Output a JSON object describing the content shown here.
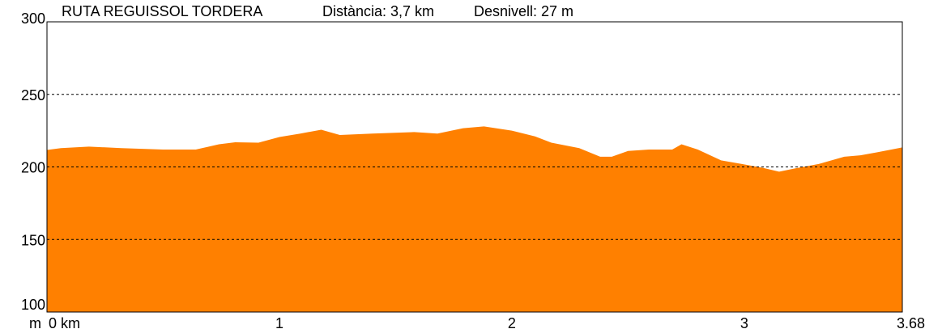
{
  "header": {
    "route": "RUTA REGUISSOL TORDERA",
    "distance": "Distància: 3,7 km",
    "elevation_gain": "Desnivell: 27 m"
  },
  "chart_data": {
    "type": "area",
    "title": "RUTA REGUISSOL TORDERA",
    "xlabel": "km",
    "ylabel": "m",
    "xlim": [
      0,
      3.68
    ],
    "ylim": [
      100,
      300
    ],
    "x_ticks": [
      0,
      1,
      2,
      3,
      3.68
    ],
    "x_tick_labels": [
      "0 km",
      "1",
      "2",
      "3",
      "3.68"
    ],
    "y_ticks": [
      100,
      150,
      200,
      250,
      300
    ],
    "y_tick_labels": [
      "100",
      "150",
      "200",
      "250",
      "300"
    ],
    "grid": "horizontal dashed at 150, 200, 250",
    "fill_color": "#FF8000",
    "x": [
      0,
      0.06,
      0.18,
      0.32,
      0.5,
      0.64,
      0.74,
      0.81,
      0.91,
      1.0,
      1.09,
      1.18,
      1.26,
      1.4,
      1.58,
      1.68,
      1.79,
      1.88,
      2.0,
      2.1,
      2.17,
      2.29,
      2.38,
      2.43,
      2.5,
      2.59,
      2.69,
      2.73,
      2.8,
      2.9,
      2.99,
      3.08,
      3.15,
      3.22,
      3.32,
      3.43,
      3.5,
      3.57,
      3.68
    ],
    "y": [
      211.7,
      213,
      214,
      213,
      212,
      212,
      215.6,
      217,
      216.7,
      220.6,
      223,
      225.6,
      222,
      223,
      224,
      223,
      226.7,
      227.9,
      225,
      221,
      216.7,
      213,
      207,
      207,
      211,
      212,
      212,
      215.6,
      212,
      204.5,
      202,
      199.4,
      196.7,
      199,
      202,
      207,
      208,
      210,
      213.4
    ]
  }
}
